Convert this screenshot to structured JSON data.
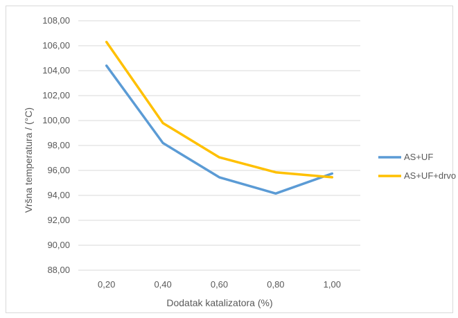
{
  "chart_data": {
    "type": "line",
    "title": "",
    "xlabel": "Dodatak katalizatora (%)",
    "ylabel": "Vršna temperatura / (°C)",
    "categories": [
      "0,20",
      "0,40",
      "0,60",
      "0,80",
      "1,00"
    ],
    "x": [
      0.2,
      0.4,
      0.6,
      0.8,
      1.0
    ],
    "ylim": [
      88,
      108
    ],
    "yticks": [
      88,
      90,
      92,
      94,
      96,
      98,
      100,
      102,
      104,
      106,
      108
    ],
    "ytick_labels": [
      "88,00",
      "90,00",
      "92,00",
      "94,00",
      "96,00",
      "98,00",
      "100,00",
      "102,00",
      "104,00",
      "106,00",
      "108,00"
    ],
    "grid": true,
    "legend_position": "right",
    "series": [
      {
        "name": "AS+UF",
        "color": "#5b9bd5",
        "values": [
          104.4,
          98.2,
          95.45,
          94.15,
          95.75
        ]
      },
      {
        "name": "AS+UF+drvo",
        "color": "#ffc000",
        "values": [
          106.3,
          99.8,
          97.05,
          95.85,
          95.45
        ]
      }
    ]
  }
}
